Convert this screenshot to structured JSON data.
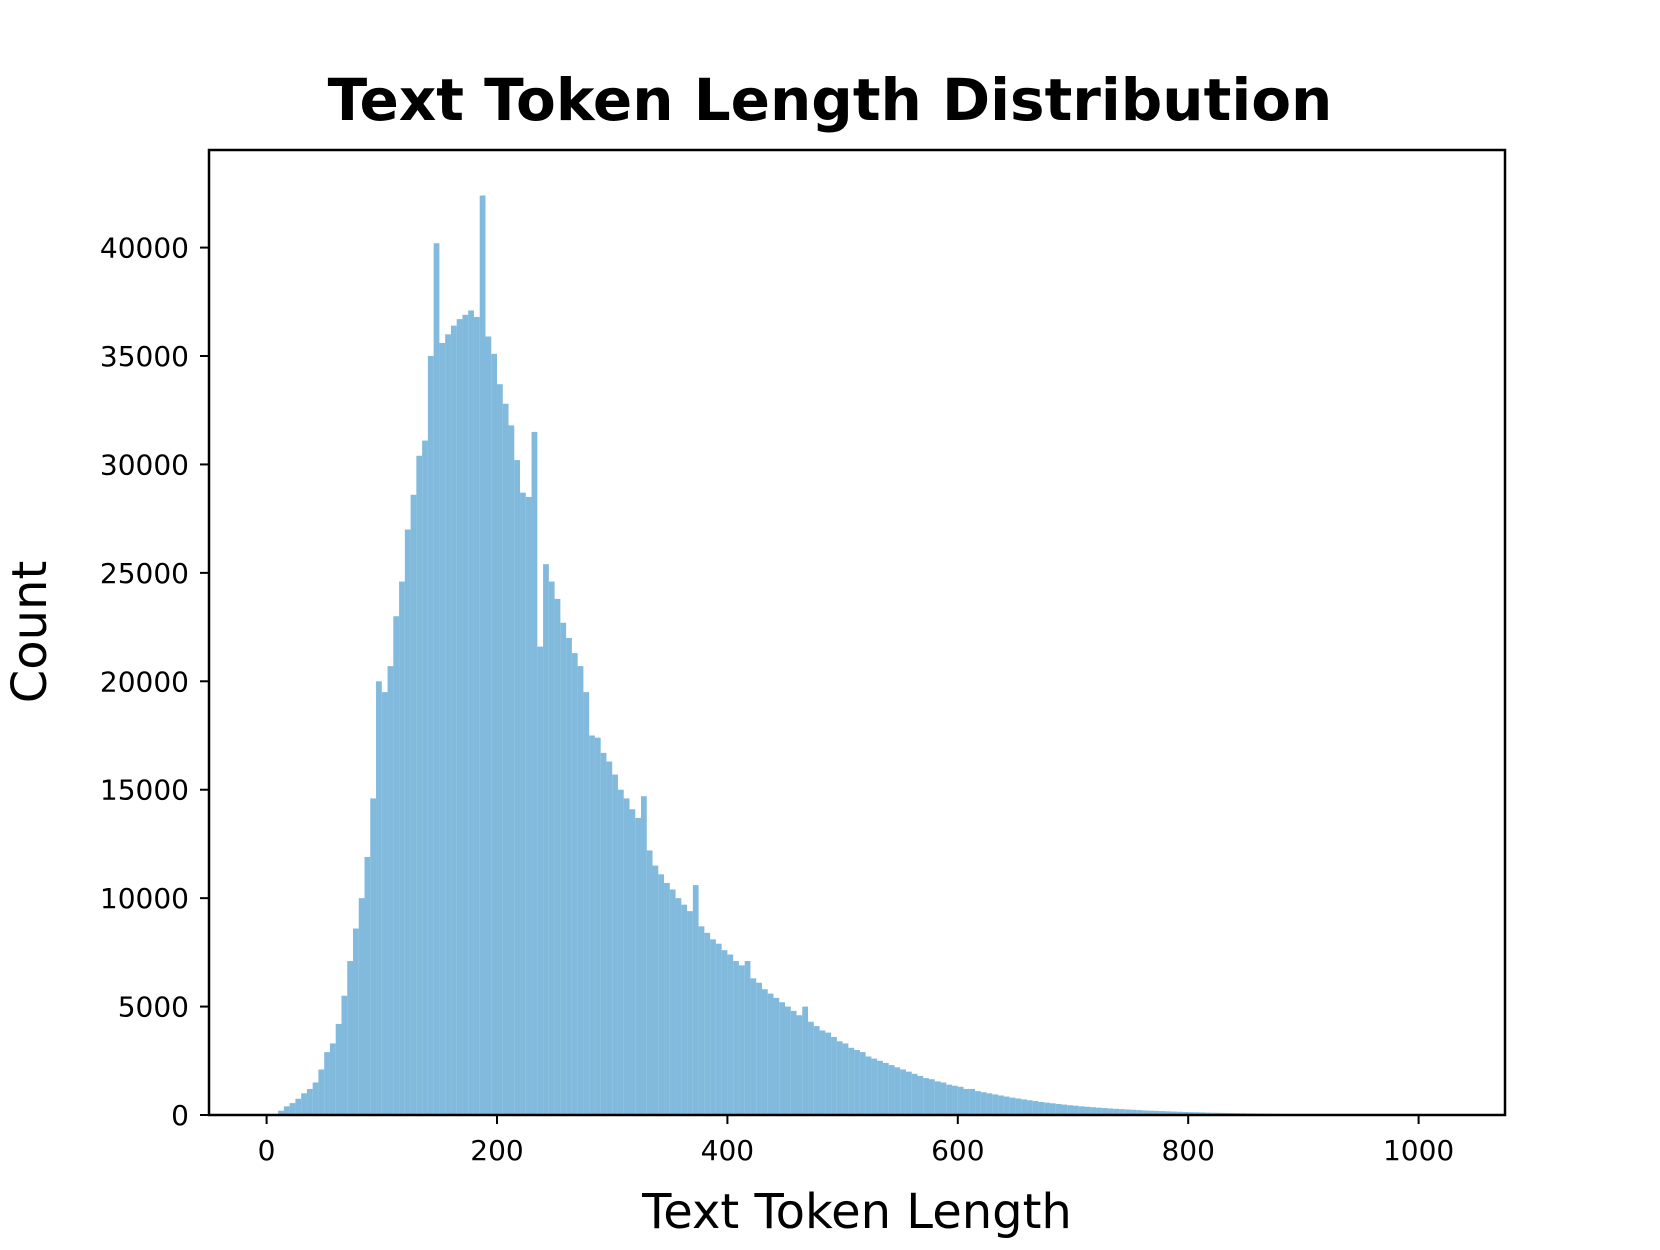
{
  "chart_data": {
    "type": "bar",
    "title": "Text Token Length Distribution",
    "xlabel": "Text Token Length",
    "ylabel": "Count",
    "xlim": [
      -50,
      1075
    ],
    "ylim": [
      0,
      44500
    ],
    "xticks": [
      0,
      200,
      400,
      600,
      800,
      1000
    ],
    "xtick_labels": [
      "0",
      "200",
      "400",
      "600",
      "800",
      "1000"
    ],
    "yticks": [
      0,
      5000,
      10000,
      15000,
      20000,
      25000,
      30000,
      35000,
      40000
    ],
    "ytick_labels": [
      "0",
      "5000",
      "10000",
      "15000",
      "20000",
      "25000",
      "30000",
      "35000",
      "40000"
    ],
    "grid": false,
    "bar_color": "#6baed6",
    "bar_opacity": 0.85,
    "bin_width": 5,
    "bin_start": 10,
    "values": [
      200,
      400,
      550,
      750,
      1000,
      1200,
      1500,
      2100,
      2900,
      3300,
      4200,
      5500,
      7100,
      8600,
      10000,
      11900,
      14600,
      20000,
      19500,
      20700,
      23000,
      24600,
      27000,
      28600,
      30400,
      31100,
      35000,
      35200,
      35600,
      36000,
      36400,
      36700,
      36900,
      37100,
      36800,
      42400,
      35900,
      35100,
      33700,
      32800,
      31800,
      30200,
      28700,
      28500,
      27500,
      26100,
      25400,
      24600,
      23800,
      22700,
      22000,
      21300,
      20700,
      19500,
      18400,
      17400,
      16700,
      16300,
      15700,
      15000,
      14600,
      14100,
      13700,
      13000,
      12200,
      11500,
      11100,
      10700,
      10400,
      10000,
      9700,
      9400,
      9100,
      8700,
      8400,
      8100,
      7900,
      7600,
      7400,
      7100,
      6900,
      6600,
      6300,
      6100,
      5800,
      5600,
      5400,
      5200,
      5000,
      4800,
      4600,
      4500,
      4300,
      4100,
      3900,
      3800,
      3600,
      3400,
      3300,
      3100,
      3000,
      2900,
      2700,
      2600,
      2500,
      2400,
      2300,
      2200,
      2100,
      2000,
      1900,
      1800,
      1700,
      1650,
      1550,
      1500,
      1400,
      1350,
      1300,
      1200,
      1150,
      1100,
      1050,
      1000,
      950,
      900,
      850,
      800,
      760,
      720,
      680,
      640,
      600,
      570,
      540,
      510,
      480,
      450,
      430,
      400,
      380,
      360,
      340,
      320,
      300,
      285,
      270,
      255,
      240,
      225,
      210,
      200,
      190,
      180,
      170,
      160,
      150,
      140,
      130,
      125,
      120,
      110,
      105,
      100,
      95,
      90,
      85,
      80,
      75,
      70,
      65,
      60,
      55,
      50,
      45,
      40,
      38,
      35,
      32,
      30,
      28,
      25,
      22,
      20,
      18,
      16,
      15,
      14,
      12,
      10,
      9,
      8,
      7,
      6,
      5,
      4,
      3
    ],
    "spikes": [
      {
        "x": 145,
        "value": 40200
      },
      {
        "x": 230,
        "value": 31500
      },
      {
        "x": 235,
        "value": 21600
      },
      {
        "x": 280,
        "value": 17500
      },
      {
        "x": 325,
        "value": 14700
      },
      {
        "x": 370,
        "value": 10600
      },
      {
        "x": 415,
        "value": 7100
      },
      {
        "x": 465,
        "value": 5000
      },
      {
        "x": 610,
        "value": 1200
      }
    ]
  }
}
